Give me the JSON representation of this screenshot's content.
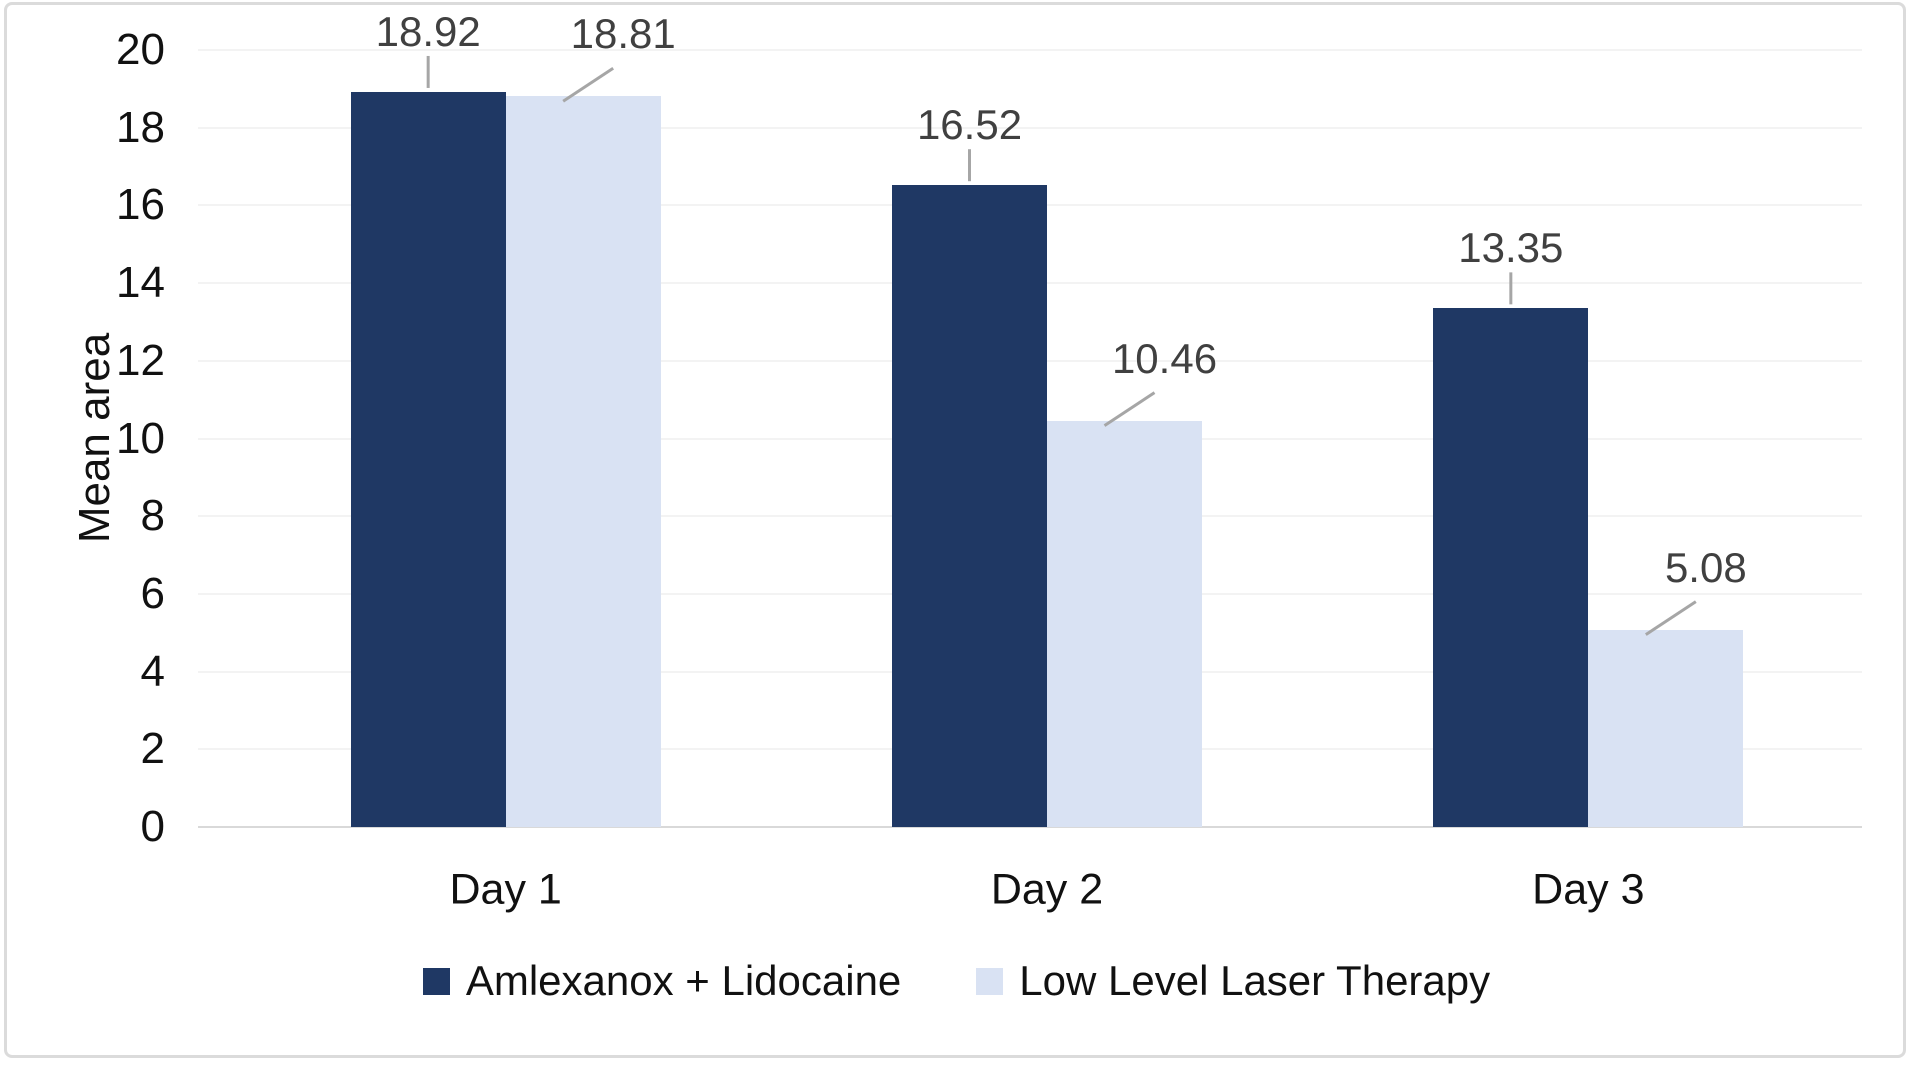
{
  "chart_data": {
    "type": "bar",
    "title": "",
    "categories": [
      "Day 1",
      "Day 2",
      "Day 3"
    ],
    "series": [
      {
        "name": "Amlexanox + Lidocaine",
        "color": "#1F3864",
        "values": [
          18.92,
          16.52,
          13.35
        ],
        "labels": [
          "18.92",
          "16.52",
          "13.35"
        ]
      },
      {
        "name": "Low Level Laser Therapy",
        "color": "#D9E2F3",
        "values": [
          18.81,
          10.46,
          5.08
        ],
        "labels": [
          "18.81",
          "10.46",
          "5.08"
        ]
      }
    ],
    "xlabel": "",
    "ylabel": "Mean area",
    "ylim": [
      0,
      20
    ],
    "ytick_step": 2,
    "yticks": [
      "0",
      "2",
      "4",
      "6",
      "8",
      "10",
      "12",
      "14",
      "16",
      "18",
      "20"
    ],
    "grid": true,
    "legend_position": "bottom",
    "data_label_color": "#404040",
    "leader_line_color": "#A6A6A6",
    "gridline_color": "#F3F3F3",
    "axis_line_color": "#D9D9D9",
    "frame_border_color": "#DBDBDB",
    "text_color": "#111111"
  }
}
